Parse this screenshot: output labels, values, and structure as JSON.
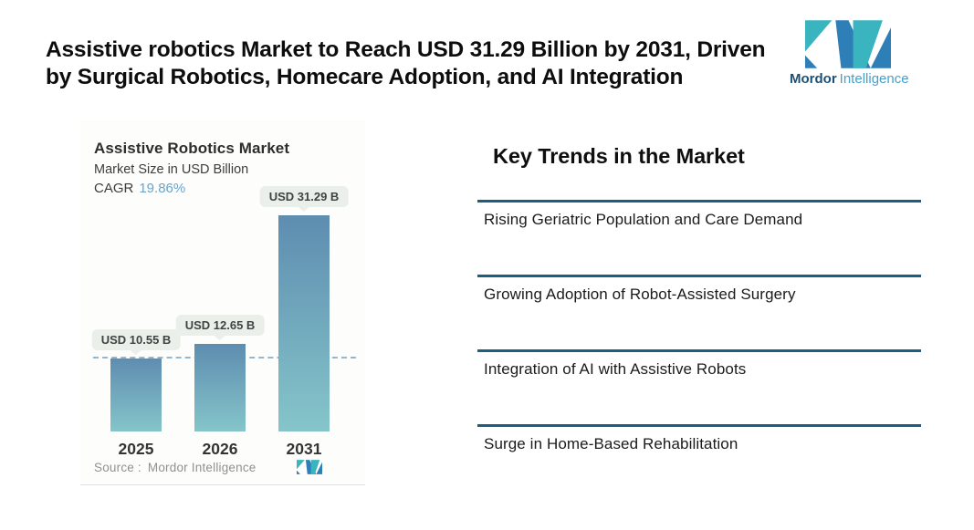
{
  "header": {
    "title_line1": "Assistive robotics Market to Reach USD 31.29 Billion by 2031, Driven",
    "title_line2": "by Surgical Robotics, Homecare Adoption, and AI Integration",
    "brand": {
      "name_bold": "Mordor",
      "name_light": "Intelligence"
    }
  },
  "chart": {
    "title": "Assistive Robotics Market",
    "subtitle": "Market Size in USD Billion",
    "cagr_label": "CAGR",
    "cagr_value": "19.86%",
    "source_label": "Source :",
    "source_value": "Mordor Intelligence",
    "bars": [
      {
        "year": "2025",
        "label": "USD 10.55 B",
        "value": 10.55
      },
      {
        "year": "2026",
        "label": "USD 12.65 B",
        "value": 12.65
      },
      {
        "year": "2031",
        "label": "USD 31.29 B",
        "value": 31.29
      }
    ]
  },
  "chart_data": {
    "type": "bar",
    "title": "Assistive Robotics Market",
    "subtitle": "Market Size in USD Billion",
    "cagr": "19.86%",
    "categories": [
      "2025",
      "2026",
      "2031"
    ],
    "values": [
      10.55,
      12.65,
      31.29
    ],
    "data_labels": [
      "USD 10.55 B",
      "USD 12.65 B",
      "USD 31.29 B"
    ],
    "unit": "USD Billion",
    "reference_line_value": 10.55,
    "reference_line_style": "dashed",
    "grid": false,
    "legend": false,
    "source": "Mordor Intelligence",
    "bar_gradient": [
      "#5e8db0",
      "#85c5ca"
    ],
    "reference_line_color": "#93b7d0"
  },
  "trends": {
    "heading": "Key Trends in the Market",
    "items": [
      {
        "label": "Rising Geriatric Population and Care Demand"
      },
      {
        "label": "Growing Adoption of Robot-Assisted Surgery"
      },
      {
        "label": "Integration of AI with Assistive Robots"
      },
      {
        "label": "Surge in Home-Based Rehabilitation"
      }
    ]
  },
  "colors": {
    "accent_divider": "#1a5f80",
    "logo_teal": "#3ab5c0",
    "logo_blue": "#2e7fb7",
    "brand_bold_text": "#1d5077",
    "brand_light_text": "#4aa0c9",
    "cagr_value_text": "#69a4cb",
    "callout_bg": "#ebefe9"
  }
}
